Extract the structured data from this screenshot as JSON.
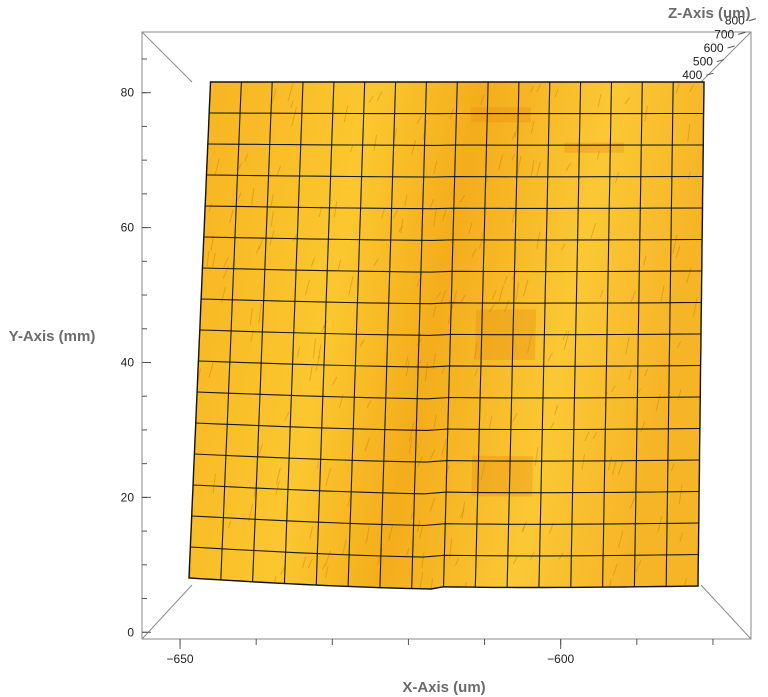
{
  "chart_data": {
    "type": "surface3d",
    "title": "",
    "xlabel": "X-Axis (um)",
    "ylabel": "Y-Axis (mm)",
    "zlabel": "Z-Axis (um)",
    "x_ticks": [
      -650,
      -600
    ],
    "y_ticks": [
      0,
      20,
      40,
      60,
      80
    ],
    "z_ticks": [
      400,
      500,
      600,
      700,
      800
    ],
    "xlim": [
      -655,
      -575
    ],
    "ylim": [
      -1,
      89
    ],
    "zlim": [
      350,
      820
    ],
    "surface": {
      "x_range": [
        -646,
        -580
      ],
      "y_range": [
        8,
        87
      ],
      "mesh_columns": 16,
      "mesh_rows": 16,
      "color_low": "#f2a21a",
      "color_high": "#fcd23a",
      "mesh_color": "#1a1a1a"
    }
  }
}
